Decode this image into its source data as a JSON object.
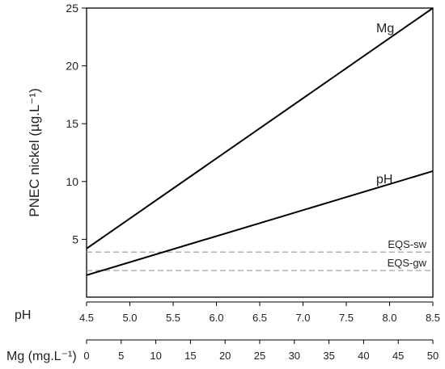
{
  "chart_data": {
    "type": "line",
    "ylabel": "PNEC nickel (µg.L⁻¹)",
    "ylim": [
      0,
      25
    ],
    "yticks": [
      5,
      10,
      15,
      20,
      25
    ],
    "grid": false,
    "axes": [
      {
        "label": "pH",
        "range": [
          4.5,
          8.5
        ],
        "ticks": [
          4.5,
          5.0,
          5.5,
          6.0,
          6.5,
          7.0,
          7.5,
          8.0,
          8.5
        ]
      },
      {
        "label": "Mg (mg.L⁻¹)",
        "range": [
          0,
          50
        ],
        "ticks": [
          0,
          5,
          10,
          15,
          20,
          25,
          30,
          35,
          40,
          45,
          50
        ]
      }
    ],
    "series": [
      {
        "name": "Mg",
        "axis": 1,
        "x": [
          0,
          50
        ],
        "y": [
          4.2,
          25.0
        ],
        "color": "#000000",
        "style": "solid"
      },
      {
        "name": "pH",
        "axis": 0,
        "x": [
          4.5,
          8.5
        ],
        "y": [
          1.9,
          10.9
        ],
        "color": "#000000",
        "style": "solid"
      }
    ],
    "reference_lines": [
      {
        "name": "EQS-sw",
        "y": 3.9,
        "color": "#999999",
        "style": "dashed"
      },
      {
        "name": "EQS-gw",
        "y": 2.3,
        "color": "#999999",
        "style": "dashed"
      }
    ]
  }
}
